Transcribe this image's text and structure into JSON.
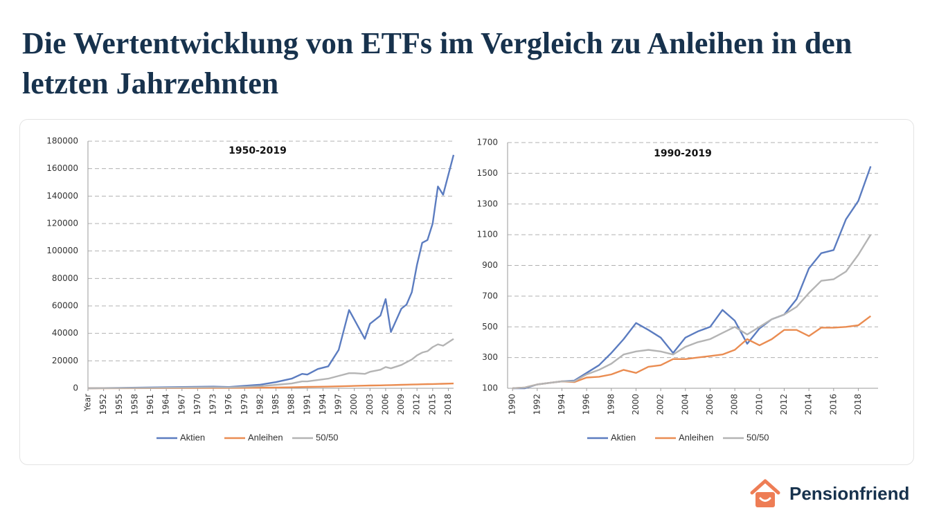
{
  "header": {
    "title": "Die Wertentwicklung von ETFs im Vergleich zu Anleihen in den letzten Jahrzehnten"
  },
  "chart_data": [
    {
      "type": "line",
      "title": "1950-2019",
      "x": [
        1949,
        1955,
        1961,
        1967,
        1973,
        1976,
        1979,
        1982,
        1985,
        1988,
        1990,
        1991,
        1993,
        1995,
        1997,
        1999,
        2000,
        2002,
        2003,
        2005,
        2006,
        2007,
        2009,
        2010,
        2011,
        2012,
        2013,
        2014,
        2015,
        2016,
        2017,
        2019
      ],
      "series": [
        {
          "name": "Aktien",
          "color": "#5b7cc0",
          "values": [
            0,
            300,
            600,
            900,
            1200,
            900,
            1800,
            2600,
            4500,
            7000,
            10500,
            10000,
            14000,
            16000,
            28000,
            57000,
            50000,
            36000,
            47000,
            53000,
            65000,
            41000,
            58000,
            61000,
            70000,
            90000,
            106000,
            108000,
            120000,
            147000,
            141000,
            170000
          ]
        },
        {
          "name": "Anleihen",
          "color": "#ea8c51",
          "values": [
            0,
            50,
            100,
            150,
            200,
            250,
            300,
            400,
            500,
            700,
            900,
            1000,
            1100,
            1200,
            1400,
            1600,
            1700,
            1900,
            2000,
            2100,
            2200,
            2300,
            2500,
            2600,
            2700,
            2800,
            2900,
            3000,
            3100,
            3200,
            3300,
            3500
          ]
        },
        {
          "name": "50/50",
          "color": "#b4b4b4",
          "values": [
            0,
            150,
            300,
            500,
            700,
            600,
            1000,
            1500,
            2500,
            3500,
            5000,
            5000,
            6000,
            7000,
            9000,
            11000,
            11000,
            10500,
            12000,
            13500,
            15500,
            14500,
            17000,
            19000,
            21000,
            24000,
            26000,
            27000,
            30000,
            32000,
            31000,
            36000
          ]
        }
      ],
      "xlim": [
        1949,
        2019
      ],
      "xticks": [
        {
          "value": 1949,
          "label": "Year"
        },
        1952,
        1955,
        1958,
        1961,
        1964,
        1967,
        1970,
        1973,
        1976,
        1979,
        1982,
        1985,
        1988,
        1991,
        1994,
        1997,
        2000,
        2003,
        2006,
        2009,
        2012,
        2015,
        2018
      ],
      "ylim": [
        0,
        180000
      ],
      "yticks": [
        0,
        20000,
        40000,
        60000,
        80000,
        100000,
        120000,
        140000,
        160000,
        180000
      ],
      "grid": true
    },
    {
      "type": "line",
      "title": "1990-2019",
      "x": [
        1990,
        1991,
        1992,
        1993,
        1994,
        1995,
        1996,
        1997,
        1998,
        1999,
        2000,
        2001,
        2002,
        2003,
        2004,
        2005,
        2006,
        2007,
        2008,
        2009,
        2010,
        2011,
        2012,
        2013,
        2014,
        2015,
        2016,
        2017,
        2018,
        2019
      ],
      "series": [
        {
          "name": "Aktien",
          "color": "#5b7cc0",
          "values": [
            100,
            100,
            125,
            135,
            145,
            150,
            200,
            250,
            330,
            420,
            525,
            480,
            430,
            330,
            430,
            470,
            500,
            610,
            540,
            390,
            490,
            550,
            580,
            680,
            880,
            980,
            1000,
            1200,
            1320,
            1545
          ]
        },
        {
          "name": "Anleihen",
          "color": "#ea8c51",
          "values": [
            100,
            105,
            125,
            135,
            145,
            140,
            170,
            175,
            190,
            220,
            200,
            240,
            250,
            290,
            290,
            300,
            310,
            320,
            350,
            420,
            380,
            420,
            480,
            480,
            440,
            495,
            495,
            500,
            510,
            570
          ]
        },
        {
          "name": "50/50",
          "color": "#b4b4b4",
          "values": [
            100,
            105,
            125,
            135,
            145,
            145,
            190,
            220,
            260,
            320,
            340,
            350,
            340,
            320,
            370,
            400,
            420,
            460,
            500,
            450,
            500,
            550,
            580,
            630,
            720,
            800,
            810,
            860,
            970,
            1100
          ]
        }
      ],
      "xlim": [
        1989.6,
        2019.6
      ],
      "xticks": [
        1990,
        1992,
        1994,
        1996,
        1998,
        2000,
        2002,
        2004,
        2006,
        2008,
        2010,
        2012,
        2014,
        2016,
        2018
      ],
      "ylim": [
        100,
        1700
      ],
      "yticks": [
        100,
        300,
        500,
        700,
        900,
        1100,
        1300,
        1500,
        1700
      ],
      "grid": true
    }
  ],
  "brand": {
    "name": "Pensionfriend"
  }
}
